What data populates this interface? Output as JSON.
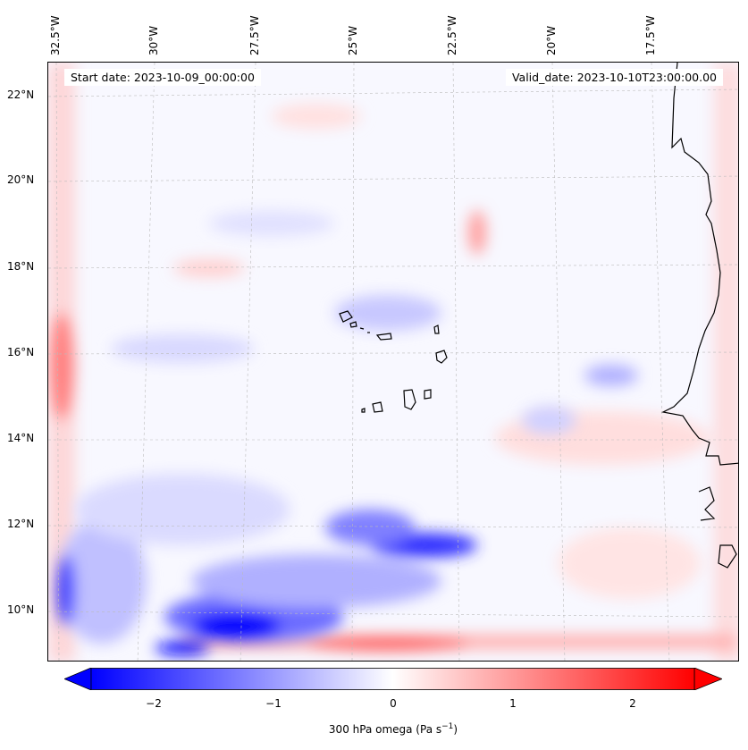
{
  "map": {
    "start_date": "Start date: 2023-10-09_00:00:00",
    "valid_date": "Valid_date: 2023-10-10T23:00:00.00",
    "lon_labels": [
      "32.5°W",
      "30°W",
      "27.5°W",
      "25°W",
      "22.5°W",
      "20°W",
      "17.5°W"
    ],
    "lat_labels": [
      "22°N",
      "20°N",
      "18°N",
      "16°N",
      "14°N",
      "12°N",
      "10°N"
    ]
  },
  "colorbar": {
    "variable": "300 hPa omega",
    "units_label": "300 hPa omega (Pa s",
    "units_exp": "−1",
    "units_close": ")",
    "ticks": [
      "−2",
      "−1",
      "0",
      "1",
      "2"
    ],
    "range": [
      -2.5,
      2.5
    ],
    "colors": {
      "min": "#0000ff",
      "mid": "#ffffff",
      "max": "#ff0000"
    }
  }
}
